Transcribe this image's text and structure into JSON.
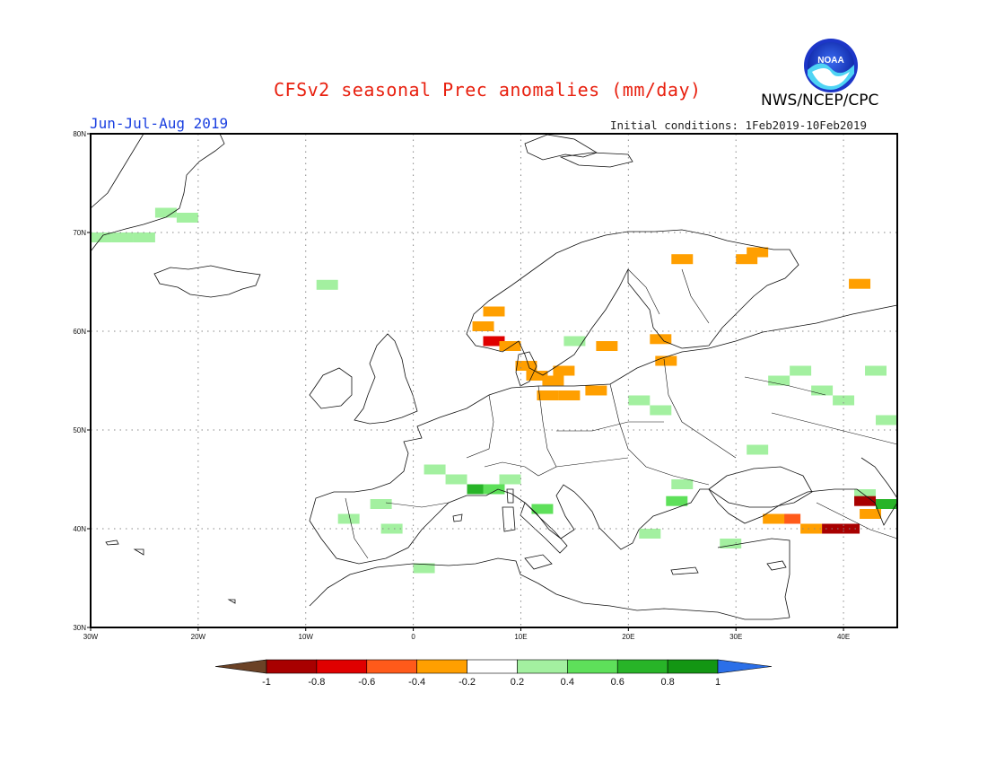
{
  "title": "CFSv2 seasonal Prec anomalies (mm/day)",
  "agency": "NWS/NCEP/CPC",
  "logo_text": "NOAA",
  "season": "Jun-Jul-Aug 2019",
  "initial_conditions": "Initial conditions: 1Feb2019-10Feb2019",
  "map": {
    "lon_range": [
      -30,
      45
    ],
    "lat_range": [
      30,
      80
    ],
    "lon_ticks": [
      {
        "value": -30,
        "label": "30W"
      },
      {
        "value": -20,
        "label": "20W"
      },
      {
        "value": -10,
        "label": "10W"
      },
      {
        "value": 0,
        "label": "0"
      },
      {
        "value": 10,
        "label": "10E"
      },
      {
        "value": 20,
        "label": "20E"
      },
      {
        "value": 30,
        "label": "30E"
      },
      {
        "value": 40,
        "label": "40E"
      }
    ],
    "lat_ticks": [
      {
        "value": 30,
        "label": "30N"
      },
      {
        "value": 40,
        "label": "40N"
      },
      {
        "value": 50,
        "label": "50N"
      },
      {
        "value": 60,
        "label": "60N"
      },
      {
        "value": 70,
        "label": "70N"
      },
      {
        "value": 80,
        "label": "80N"
      }
    ],
    "grid": "dotted"
  },
  "colorbar": {
    "labels": [
      "-1",
      "-0.8",
      "-0.6",
      "-0.4",
      "-0.2",
      "0.2",
      "0.4",
      "0.6",
      "0.8",
      "1"
    ],
    "colors": [
      "#6b4226",
      "#a80000",
      "#e00000",
      "#ff5a1a",
      "#ff9f00",
      "#ffffff",
      "#a3f0a0",
      "#5ee05a",
      "#28b428",
      "#139613",
      "#2b6fe8"
    ]
  },
  "anomaly_cells": [
    {
      "lon": -29,
      "lat": 69.5,
      "value": 0.3
    },
    {
      "lon": -27,
      "lat": 69.5,
      "value": 0.3
    },
    {
      "lon": -25,
      "lat": 69.5,
      "value": 0.3
    },
    {
      "lon": -21,
      "lat": 71.5,
      "value": 0.3
    },
    {
      "lon": -23,
      "lat": 72,
      "value": 0.3
    },
    {
      "lon": -8,
      "lat": 64.7,
      "value": 0.3
    },
    {
      "lon": 7.5,
      "lat": 62,
      "value": -0.3
    },
    {
      "lon": 6.5,
      "lat": 60.5,
      "value": -0.3
    },
    {
      "lon": 7.5,
      "lat": 59,
      "value": -0.7
    },
    {
      "lon": 9,
      "lat": 58.5,
      "value": -0.3
    },
    {
      "lon": 10.5,
      "lat": 56.5,
      "value": -0.3
    },
    {
      "lon": 11.5,
      "lat": 55.5,
      "value": -0.3
    },
    {
      "lon": 13,
      "lat": 55,
      "value": -0.3
    },
    {
      "lon": 14,
      "lat": 56,
      "value": -0.3
    },
    {
      "lon": 12.5,
      "lat": 53.5,
      "value": -0.3
    },
    {
      "lon": 14.5,
      "lat": 53.5,
      "value": -0.3
    },
    {
      "lon": 17,
      "lat": 54,
      "value": -0.3
    },
    {
      "lon": 25,
      "lat": 67.3,
      "value": -0.3
    },
    {
      "lon": 31,
      "lat": 67.3,
      "value": -0.3
    },
    {
      "lon": 32,
      "lat": 68,
      "value": -0.3
    },
    {
      "lon": 23,
      "lat": 59.2,
      "value": -0.3
    },
    {
      "lon": 23.5,
      "lat": 57,
      "value": -0.3
    },
    {
      "lon": 41.5,
      "lat": 64.8,
      "value": -0.3
    },
    {
      "lon": 18,
      "lat": 58.5,
      "value": -0.3
    },
    {
      "lon": 15,
      "lat": 59,
      "value": 0.3
    },
    {
      "lon": 21,
      "lat": 53,
      "value": 0.3
    },
    {
      "lon": 23,
      "lat": 52,
      "value": 0.3
    },
    {
      "lon": 34,
      "lat": 55,
      "value": 0.3
    },
    {
      "lon": 36,
      "lat": 56,
      "value": 0.3
    },
    {
      "lon": 38,
      "lat": 54,
      "value": 0.3
    },
    {
      "lon": 40,
      "lat": 53,
      "value": 0.3
    },
    {
      "lon": 43,
      "lat": 56,
      "value": 0.3
    },
    {
      "lon": 44,
      "lat": 51,
      "value": 0.3
    },
    {
      "lon": 32,
      "lat": 48,
      "value": 0.3
    },
    {
      "lon": 2,
      "lat": 46,
      "value": 0.3
    },
    {
      "lon": 4,
      "lat": 45,
      "value": 0.3
    },
    {
      "lon": 6,
      "lat": 44,
      "value": 0.7
    },
    {
      "lon": 7.5,
      "lat": 44,
      "value": 0.5
    },
    {
      "lon": 9,
      "lat": 45,
      "value": 0.3
    },
    {
      "lon": -3,
      "lat": 42.5,
      "value": 0.3
    },
    {
      "lon": -6,
      "lat": 41,
      "value": 0.3
    },
    {
      "lon": -2,
      "lat": 40,
      "value": 0.3
    },
    {
      "lon": 1,
      "lat": 36,
      "value": 0.3
    },
    {
      "lon": 12,
      "lat": 42,
      "value": 0.5
    },
    {
      "lon": 25,
      "lat": 44.5,
      "value": 0.3
    },
    {
      "lon": 24.5,
      "lat": 42.8,
      "value": 0.5
    },
    {
      "lon": 22,
      "lat": 39.5,
      "value": 0.3
    },
    {
      "lon": 29.5,
      "lat": 38.5,
      "value": 0.3
    },
    {
      "lon": 42,
      "lat": 43.5,
      "value": 0.3
    },
    {
      "lon": 44,
      "lat": 42.5,
      "value": 0.7
    },
    {
      "lon": 35,
      "lat": 41,
      "value": -0.5
    },
    {
      "lon": 33.5,
      "lat": 41,
      "value": -0.3
    },
    {
      "lon": 37,
      "lat": 40,
      "value": -0.3
    },
    {
      "lon": 39,
      "lat": 40,
      "value": -0.9
    },
    {
      "lon": 40.5,
      "lat": 40,
      "value": -0.9
    },
    {
      "lon": 42,
      "lat": 42.8,
      "value": -0.9
    },
    {
      "lon": 42.5,
      "lat": 41.5,
      "value": -0.3
    }
  ]
}
